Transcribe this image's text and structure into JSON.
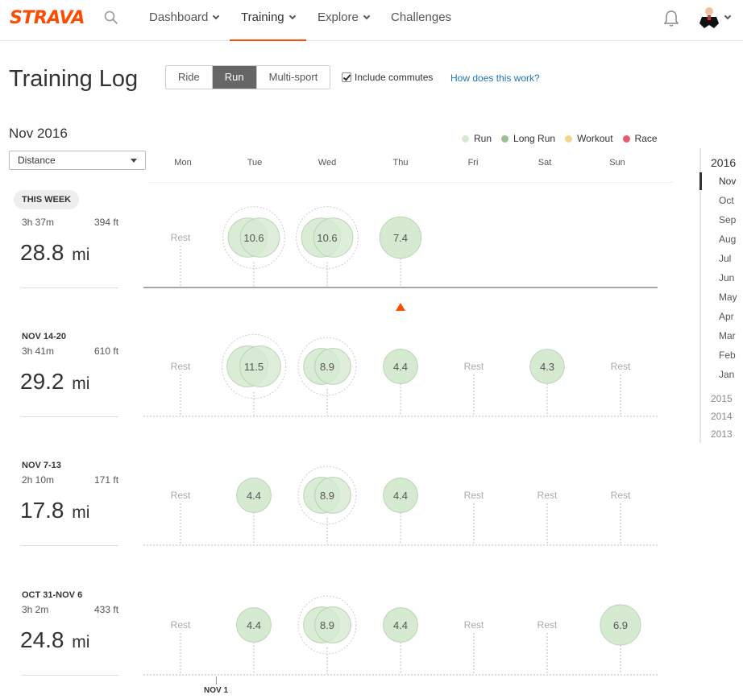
{
  "nav": {
    "logo": "STRAVA",
    "items": [
      {
        "label": "Dashboard",
        "chevron": true
      },
      {
        "label": "Training",
        "chevron": true,
        "active": true
      },
      {
        "label": "Explore",
        "chevron": true
      },
      {
        "label": "Challenges",
        "chevron": false
      }
    ]
  },
  "page": {
    "title": "Training Log",
    "sport_tabs": [
      "Ride",
      "Run",
      "Multi-sport"
    ],
    "active_sport": "Run",
    "commutes_label": "Include commutes",
    "commutes_checked": true,
    "help_link": "How does this work?",
    "month_title": "Nov 2016",
    "metric_select": "Distance"
  },
  "legend": [
    {
      "label": "Run",
      "color": "#d6ead2"
    },
    {
      "label": "Long Run",
      "color": "#9cbf94"
    },
    {
      "label": "Workout",
      "color": "#f7d48c"
    },
    {
      "label": "Race",
      "color": "#e35d6a"
    }
  ],
  "days": [
    "Mon",
    "Tue",
    "Wed",
    "Thu",
    "Fri",
    "Sat",
    "Sun"
  ],
  "rest_label": "Rest",
  "weeks": [
    {
      "label": "THIS WEEK",
      "time": "3h 37m",
      "elev": "394 ft",
      "distance": "28.8",
      "unit": "mi",
      "current": true,
      "days": [
        {
          "rest": true
        },
        {
          "value": "10.6",
          "multi": true
        },
        {
          "value": "10.6",
          "multi": true
        },
        {
          "value": "7.4"
        },
        null,
        null,
        null
      ]
    },
    {
      "label": "NOV 14-20",
      "time": "3h 41m",
      "elev": "610 ft",
      "distance": "29.2",
      "unit": "mi",
      "days": [
        {
          "rest": true
        },
        {
          "value": "11.5",
          "multi": true
        },
        {
          "value": "8.9",
          "multi": true
        },
        {
          "value": "4.4"
        },
        {
          "rest": true
        },
        {
          "value": "4.3"
        },
        {
          "rest": true
        }
      ]
    },
    {
      "label": "NOV 7-13",
      "time": "2h 10m",
      "elev": "171 ft",
      "distance": "17.8",
      "unit": "mi",
      "days": [
        {
          "rest": true
        },
        {
          "value": "4.4"
        },
        {
          "value": "8.9",
          "multi": true
        },
        {
          "value": "4.4"
        },
        {
          "rest": true
        },
        {
          "rest": true
        },
        {
          "rest": true
        }
      ]
    },
    {
      "label": "OCT 31-NOV 6",
      "time": "3h 2m",
      "elev": "433 ft",
      "distance": "24.8",
      "unit": "mi",
      "days": [
        {
          "rest": true
        },
        {
          "value": "4.4"
        },
        {
          "value": "8.9",
          "multi": true
        },
        {
          "value": "4.4"
        },
        {
          "rest": true
        },
        {
          "rest": true
        },
        {
          "value": "6.9"
        }
      ]
    }
  ],
  "month_marker": "NOV 1",
  "year_nav": {
    "current_year": "2016",
    "months": [
      "Nov",
      "Oct",
      "Sep",
      "Aug",
      "Jul",
      "Jun",
      "May",
      "Apr",
      "Mar",
      "Feb",
      "Jan"
    ],
    "active_month": "Nov",
    "other_years": [
      "2015",
      "2014",
      "2013"
    ]
  }
}
